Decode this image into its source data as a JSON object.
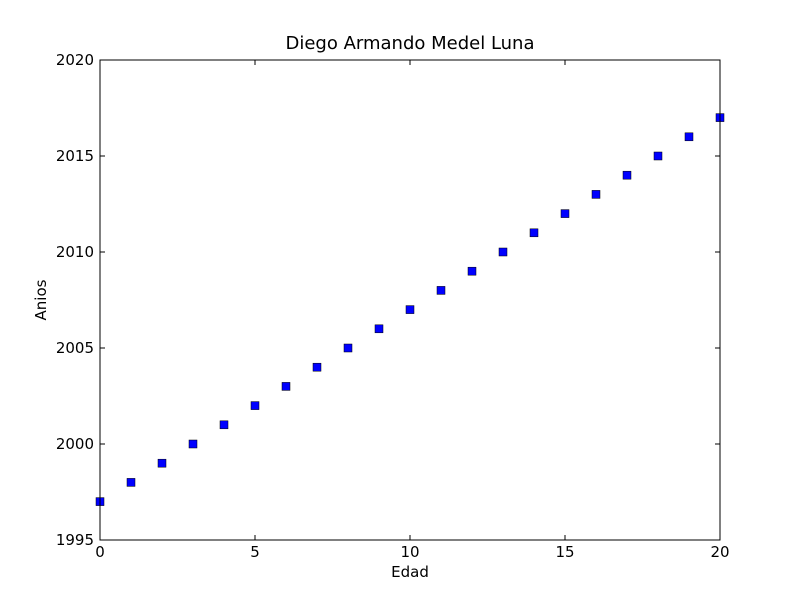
{
  "chart_data": {
    "type": "scatter",
    "title": "Diego Armando Medel Luna",
    "xlabel": "Edad",
    "ylabel": "Anios",
    "xlim": [
      0,
      20
    ],
    "ylim": [
      1995,
      2020
    ],
    "xticks": [
      0,
      5,
      10,
      15,
      20
    ],
    "yticks": [
      1995,
      2000,
      2005,
      2010,
      2015,
      2020
    ],
    "grid": false,
    "marker": "square",
    "marker_color": "#0000ff",
    "series": [
      {
        "x": [
          0,
          1,
          2,
          3,
          4,
          5,
          6,
          7,
          8,
          9,
          10,
          11,
          12,
          13,
          14,
          15,
          16,
          17,
          18,
          19,
          20
        ],
        "y": [
          1997,
          1998,
          1999,
          2000,
          2001,
          2002,
          2003,
          2004,
          2005,
          2006,
          2007,
          2008,
          2009,
          2010,
          2011,
          2012,
          2013,
          2014,
          2015,
          2016,
          2017
        ]
      }
    ]
  }
}
